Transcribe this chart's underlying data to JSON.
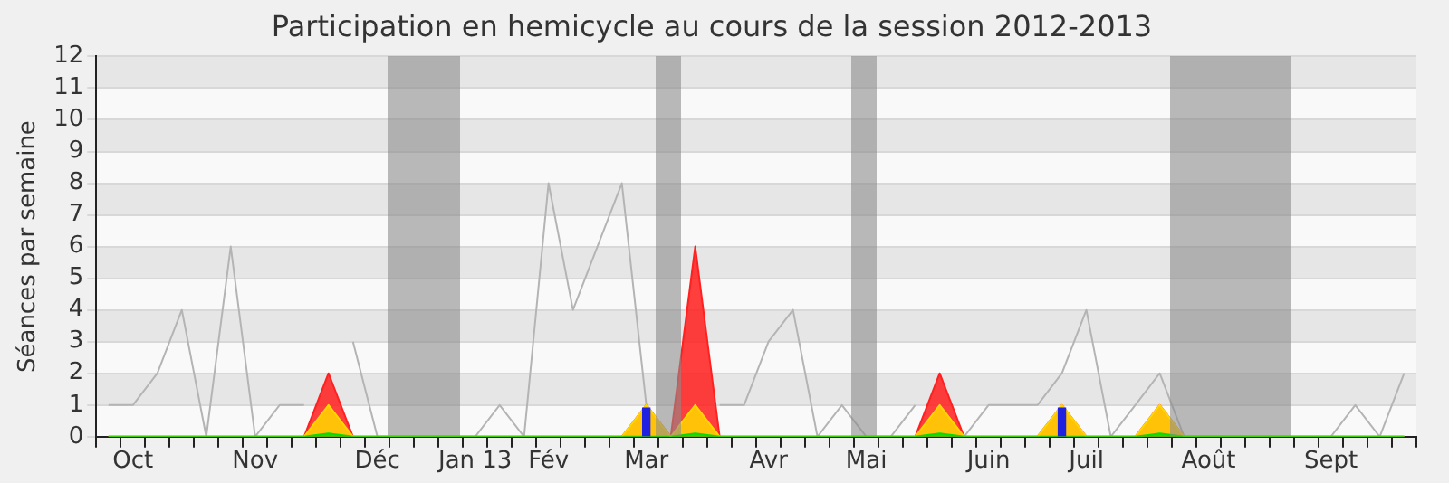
{
  "chart_data": {
    "type": "line",
    "title": "Participation en hemicycle au cours de la session 2012-2013",
    "ylabel": "Séances par semaine",
    "categories": [
      null,
      "Oct",
      null,
      null,
      null,
      null,
      "Nov",
      null,
      null,
      null,
      null,
      "Déc",
      null,
      null,
      null,
      "Jan 13",
      null,
      null,
      "Fév",
      null,
      null,
      null,
      "Mar",
      null,
      null,
      null,
      null,
      "Avr",
      null,
      null,
      null,
      "Mai",
      null,
      null,
      null,
      null,
      "Juin",
      null,
      null,
      null,
      "Juil",
      null,
      null,
      null,
      null,
      "Août",
      null,
      null,
      null,
      null,
      "Sept",
      null,
      null,
      null
    ],
    "series": [
      {
        "color": "#b4b4b4",
        "values": [
          1,
          1,
          2,
          4,
          0,
          6,
          0,
          1,
          1,
          null,
          3,
          0,
          0,
          0,
          0,
          0,
          1,
          0,
          8,
          4,
          6,
          8,
          1,
          0,
          null,
          1,
          1,
          3,
          4,
          0,
          1,
          0,
          0,
          1,
          null,
          0,
          1,
          1,
          1,
          2,
          4,
          0,
          1,
          2,
          0,
          0,
          0,
          0,
          0,
          0,
          0,
          1,
          0,
          2
        ]
      },
      {
        "type": "area",
        "color": "#ff2020",
        "values": [
          0,
          0,
          0,
          0,
          0,
          0,
          0,
          0,
          0,
          2,
          0,
          0,
          0,
          0,
          0,
          0,
          0,
          0,
          0,
          0,
          0,
          0,
          1,
          0,
          6,
          0,
          0,
          0,
          0,
          0,
          0,
          0,
          0,
          0,
          2,
          0,
          0,
          0,
          0,
          1,
          0,
          0,
          0,
          1,
          0,
          0,
          0,
          0,
          0,
          0,
          0,
          0,
          0,
          0
        ]
      },
      {
        "type": "area",
        "color": "#ffd700",
        "values": [
          0,
          0,
          0,
          0,
          0,
          0,
          0,
          0,
          0,
          1,
          0,
          0,
          0,
          0,
          0,
          0,
          0,
          0,
          0,
          0,
          0,
          0,
          1,
          0,
          1,
          0,
          0,
          0,
          0,
          0,
          0,
          0,
          0,
          0,
          1,
          0,
          0,
          0,
          0,
          1,
          0,
          0,
          0,
          1,
          0,
          0,
          0,
          0,
          0,
          0,
          0,
          0,
          0,
          0
        ]
      },
      {
        "type": "area",
        "color": "#00dd00",
        "values": [
          0,
          0,
          0,
          0,
          0,
          0,
          0,
          0,
          0,
          0.1,
          0,
          0,
          0,
          0,
          0,
          0,
          0,
          0,
          0,
          0,
          0,
          0,
          0,
          0,
          0.1,
          0,
          0,
          0,
          0,
          0,
          0,
          0,
          0,
          0,
          0.1,
          0,
          0,
          0,
          0,
          0,
          0,
          0,
          0,
          0.1,
          0,
          0,
          0,
          0,
          0,
          0,
          0,
          0,
          0,
          0
        ]
      },
      {
        "type": "bar",
        "color": "#2020e0",
        "values": [
          null,
          null,
          null,
          null,
          null,
          null,
          null,
          null,
          null,
          null,
          null,
          null,
          null,
          null,
          null,
          null,
          null,
          null,
          null,
          null,
          null,
          null,
          0.9,
          null,
          null,
          null,
          null,
          null,
          null,
          null,
          null,
          null,
          null,
          null,
          null,
          null,
          null,
          null,
          null,
          0.9,
          null,
          null,
          null,
          null,
          null,
          null,
          null,
          null,
          null,
          null,
          null,
          null,
          null,
          null
        ]
      }
    ],
    "ylim": [
      0,
      12
    ],
    "yticks": [
      0,
      1,
      2,
      3,
      4,
      5,
      6,
      7,
      8,
      9,
      10,
      11,
      12
    ],
    "grid": "y",
    "legend": false,
    "marker": "none"
  }
}
